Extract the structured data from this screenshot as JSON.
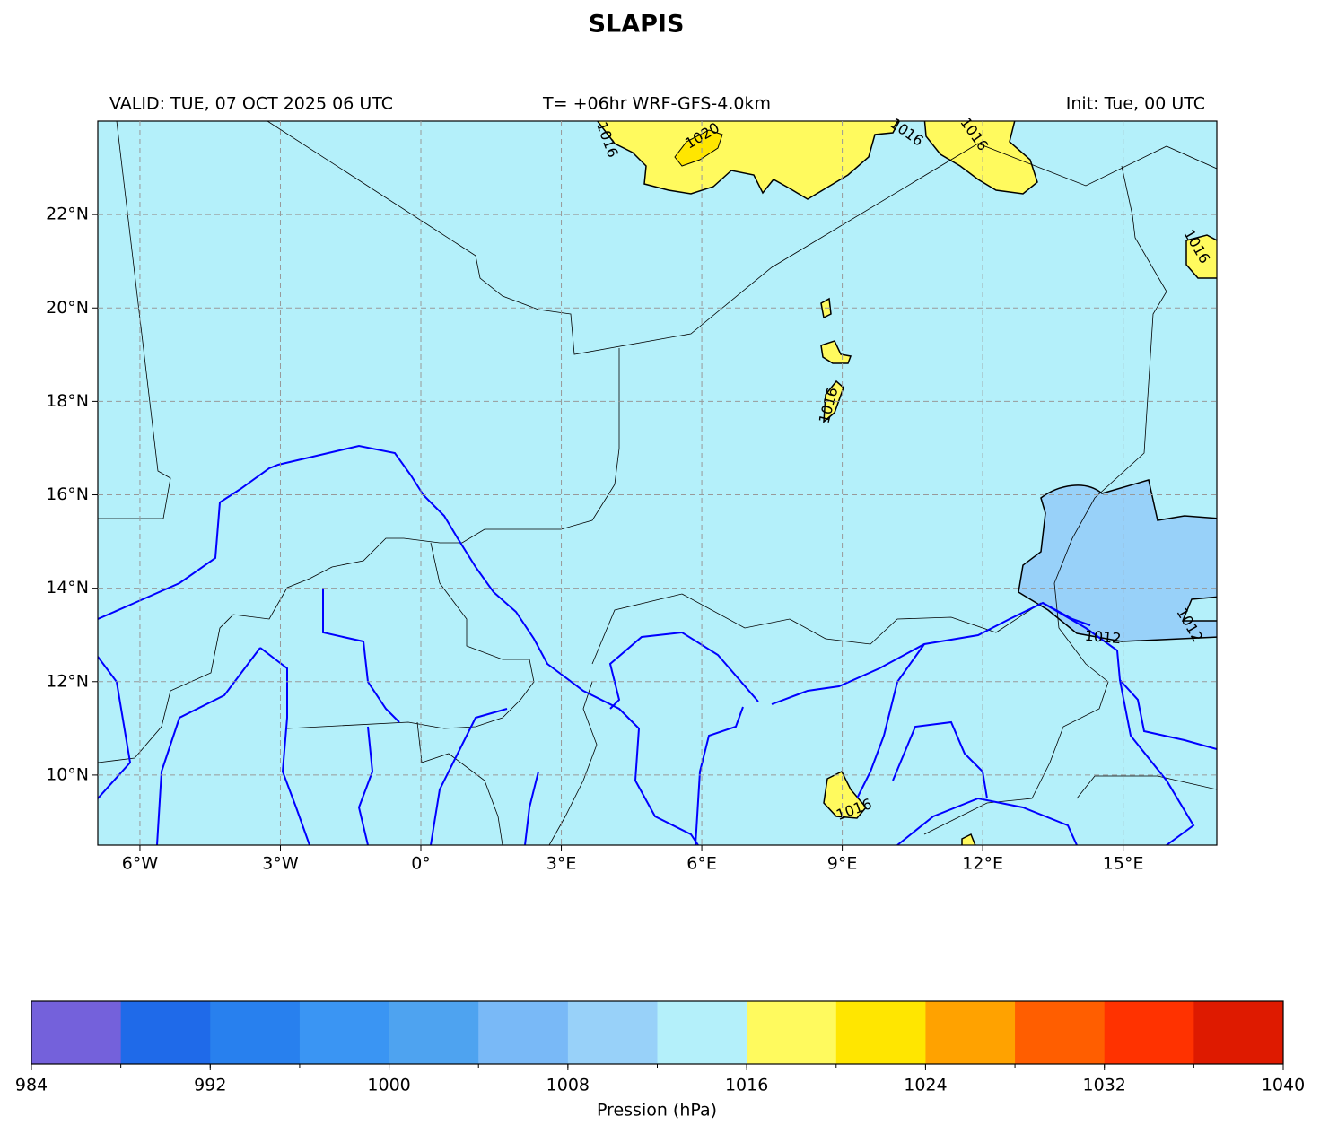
{
  "header": {
    "title": "SLAPIS",
    "valid": "VALID: TUE, 07 OCT 2025 06 UTC",
    "run": "T= +06hr WRF-GFS-4.0km",
    "init": "Init: Tue, 00 UTC"
  },
  "map": {
    "background": "#b4f0fa",
    "xlim": [
      -6.9,
      17
    ],
    "ylim": [
      8.5,
      24
    ],
    "xticks": [
      {
        "value": -6,
        "label": "6°W"
      },
      {
        "value": -3,
        "label": "3°W"
      },
      {
        "value": 0,
        "label": "0°"
      },
      {
        "value": 3,
        "label": "3°E"
      },
      {
        "value": 6,
        "label": "6°E"
      },
      {
        "value": 9,
        "label": "9°E"
      },
      {
        "value": 12,
        "label": "12°E"
      },
      {
        "value": 15,
        "label": "15°E"
      }
    ],
    "yticks": [
      {
        "value": 10,
        "label": "10°N"
      },
      {
        "value": 12,
        "label": "12°N"
      },
      {
        "value": 14,
        "label": "14°N"
      },
      {
        "value": 16,
        "label": "16°N"
      },
      {
        "value": 18,
        "label": "18°N"
      },
      {
        "value": 20,
        "label": "20°N"
      },
      {
        "value": 22,
        "label": "22°N"
      }
    ],
    "grid": true,
    "contour_labels": [
      1016,
      1020,
      1016,
      1016,
      1016,
      1016,
      1016,
      1012,
      1012
    ]
  },
  "colorbar": {
    "label": "Pression (hPa)",
    "levels": [
      984,
      988,
      992,
      996,
      1000,
      1004,
      1008,
      1012,
      1016,
      1020,
      1024,
      1028,
      1032,
      1036,
      1040
    ],
    "colors": [
      "#7461db",
      "#1f6ae9",
      "#2880ee",
      "#3a95f3",
      "#4ea3f0",
      "#79b9f7",
      "#98d1f9",
      "#b4f0fa",
      "#fffa5e",
      "#ffe600",
      "#ffa200",
      "#ff5e00",
      "#ff3200",
      "#de1a00"
    ],
    "ticks": [
      984,
      992,
      1000,
      1008,
      1016,
      1024,
      1032,
      1040
    ]
  }
}
